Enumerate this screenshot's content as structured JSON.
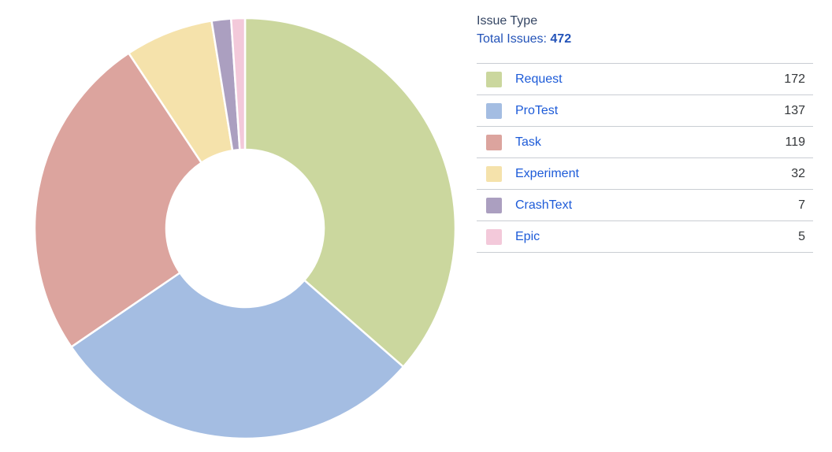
{
  "header": {
    "title": "Issue Type",
    "total_label": "Total Issues:",
    "total_value": "472"
  },
  "chart_data": {
    "type": "pie",
    "subtype": "donut",
    "title": "Issue Type",
    "total": 472,
    "categories": [
      "Request",
      "ProTest",
      "Task",
      "Experiment",
      "CrashText",
      "Epic"
    ],
    "values": [
      172,
      137,
      119,
      32,
      7,
      5
    ],
    "colors": [
      "#cbd79e",
      "#a4bde2",
      "#dca49e",
      "#f5e2ab",
      "#ab9fc0",
      "#f3c9da"
    ],
    "start_angle_deg": -90,
    "direction": "clockwise",
    "inner_radius_ratio": 0.375,
    "slice_border_color": "#ffffff",
    "legend_position": "right"
  }
}
